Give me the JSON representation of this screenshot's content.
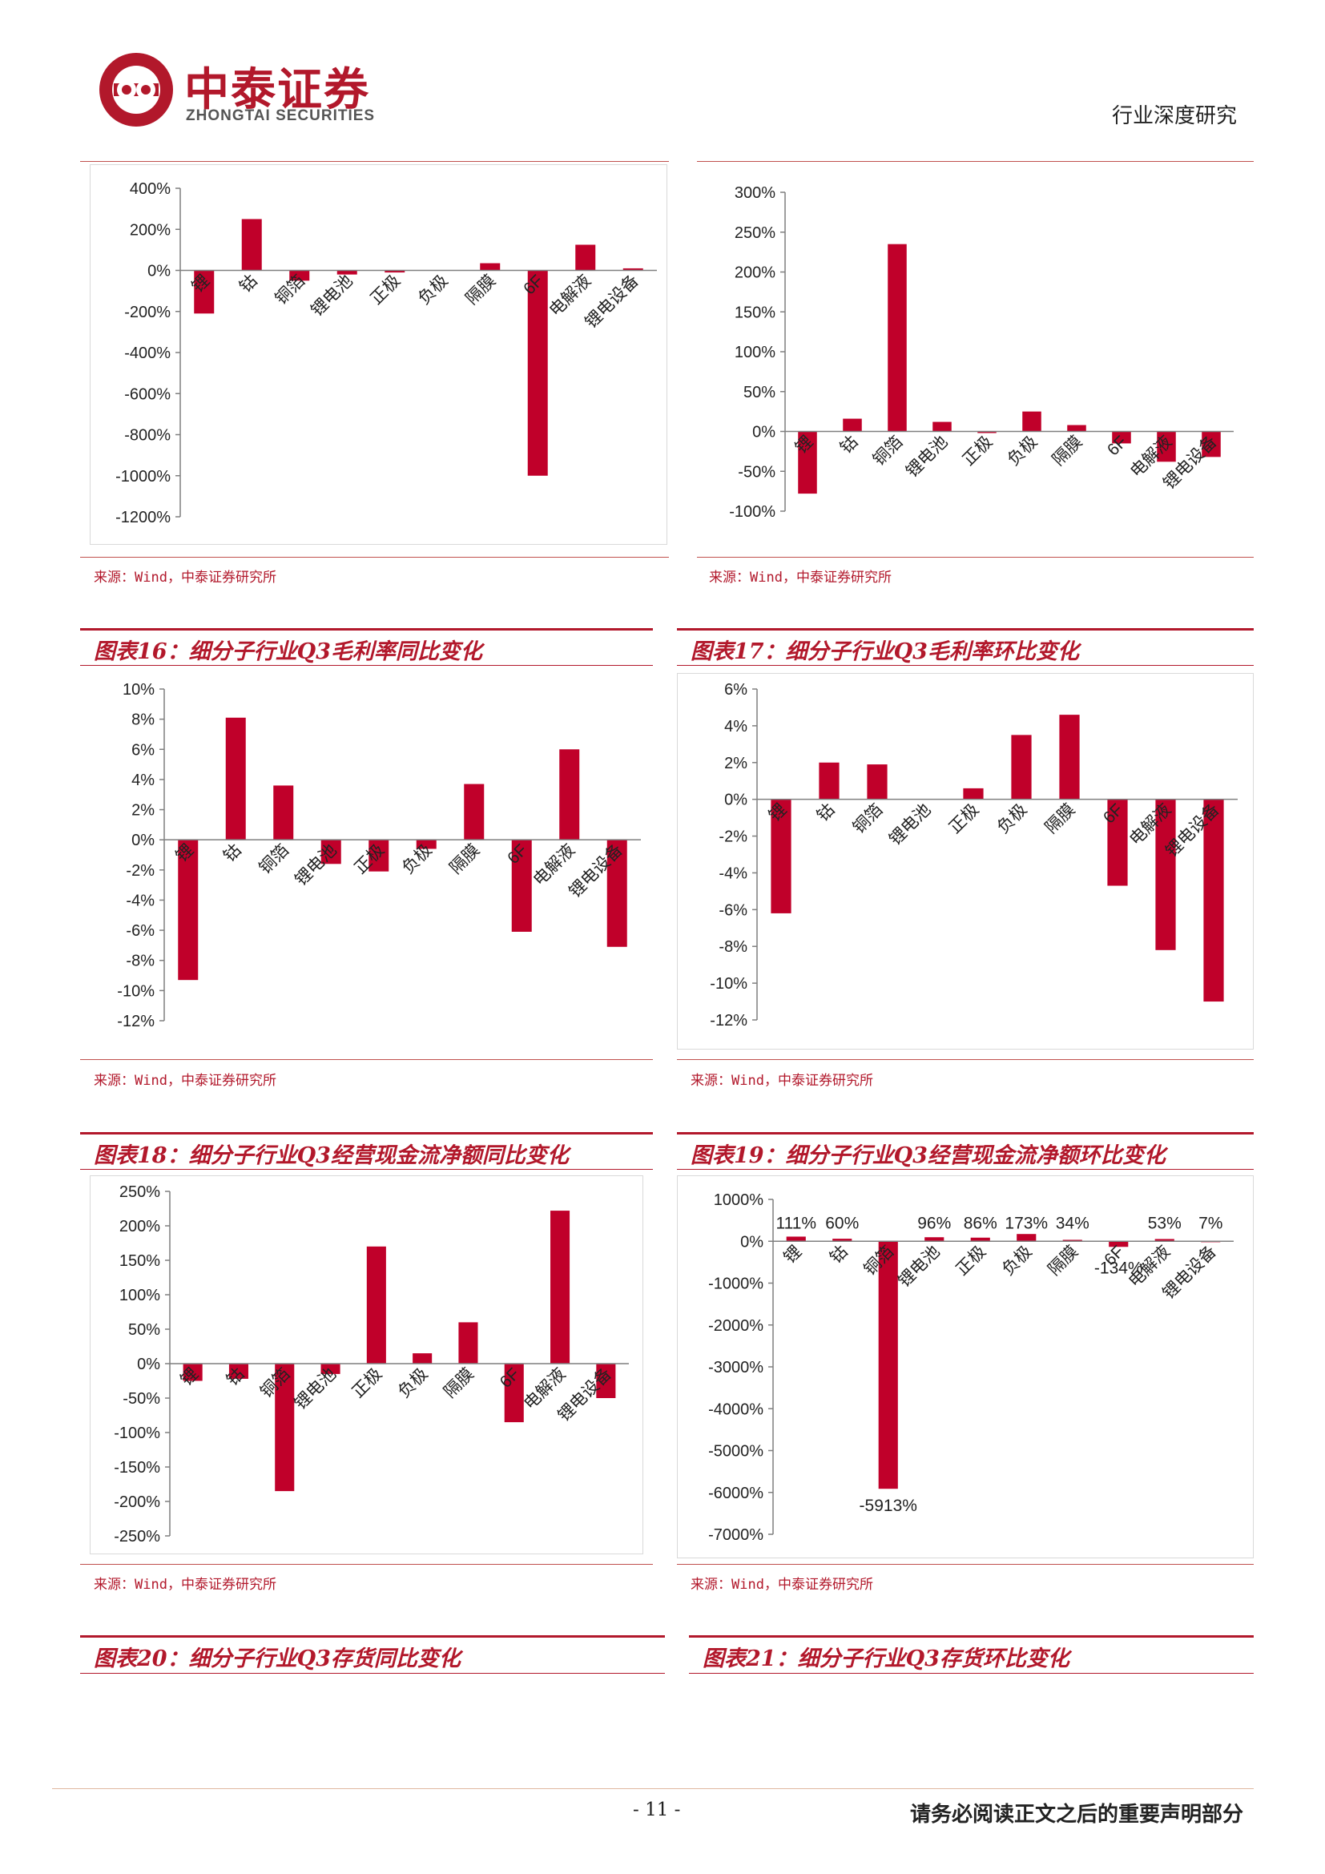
{
  "header": {
    "logo_cn": "中泰证券",
    "logo_en": "ZHONGTAI SECURITIES",
    "report_type": "行业深度研究"
  },
  "sources": {
    "s1": "来源：Wind，中泰证券研究所",
    "s2": "来源：Wind，中泰证券研究所",
    "s3": "来源：Wind，中泰证券研究所",
    "s4": "来源：Wind，中泰证券研究所",
    "s5": "来源：Wind，中泰证券研究所",
    "s6": "来源：Wind，中泰证券研究所"
  },
  "figures": {
    "f16": "图表16：细分子行业Q3毛利率同比变化",
    "f17": "图表17：细分子行业Q3毛利率环比变化",
    "f18": "图表18：细分子行业Q3经营现金流净额同比变化",
    "f19": "图表19：细分子行业Q3经营现金流净额环比变化",
    "f20": "图表20：细分子行业Q3存货同比变化",
    "f21": "图表21：细分子行业Q3存货环比变化"
  },
  "footer": {
    "page": "- 11 -",
    "notice": "请务必阅读正文之后的重要声明部分"
  },
  "colors": {
    "bar": "#c0002a",
    "accent": "#b2182b"
  },
  "chart_data": [
    {
      "id": "c1",
      "type": "bar",
      "categories": [
        "锂",
        "钴",
        "铜箔",
        "锂电池",
        "正极",
        "负极",
        "隔膜",
        "6F",
        "电解液",
        "锂电设备"
      ],
      "values": [
        -210,
        250,
        -50,
        -20,
        -10,
        0,
        35,
        -1000,
        125,
        10
      ],
      "ylim": [
        -1200,
        400
      ],
      "yticks": [
        400,
        200,
        0,
        -200,
        -400,
        -600,
        -800,
        -1000,
        -1200
      ],
      "tick_labels": [
        "400%",
        "200%",
        "0%",
        "-200%",
        "-400%",
        "-600%",
        "-800%",
        "-1000%",
        "-1200%"
      ]
    },
    {
      "id": "c2",
      "type": "bar",
      "categories": [
        "锂",
        "钴",
        "铜箔",
        "锂电池",
        "正极",
        "负极",
        "隔膜",
        "6F",
        "电解液",
        "锂电设备"
      ],
      "values": [
        -78,
        16,
        235,
        12,
        -2,
        25,
        8,
        -15,
        -38,
        -32
      ],
      "ylim": [
        -100,
        300
      ],
      "yticks": [
        300,
        250,
        200,
        150,
        100,
        50,
        0,
        -50,
        -100
      ],
      "tick_labels": [
        "300%",
        "250%",
        "200%",
        "150%",
        "100%",
        "50%",
        "0%",
        "-50%",
        "-100%"
      ]
    },
    {
      "id": "c3",
      "type": "bar",
      "categories": [
        "锂",
        "钴",
        "铜箔",
        "锂电池",
        "正极",
        "负极",
        "隔膜",
        "6F",
        "电解液",
        "锂电设备"
      ],
      "values": [
        -9.3,
        8.1,
        3.6,
        -1.6,
        -2.1,
        -0.6,
        3.7,
        -6.1,
        6.0,
        -7.1
      ],
      "ylim": [
        -12,
        10
      ],
      "yticks": [
        10,
        8,
        6,
        4,
        2,
        0,
        -2,
        -4,
        -6,
        -8,
        -10,
        -12
      ],
      "tick_labels": [
        "10%",
        "8%",
        "6%",
        "4%",
        "2%",
        "0%",
        "-2%",
        "-4%",
        "-6%",
        "-8%",
        "-10%",
        "-12%"
      ]
    },
    {
      "id": "c4",
      "type": "bar",
      "categories": [
        "锂",
        "钴",
        "铜箔",
        "锂电池",
        "正极",
        "负极",
        "隔膜",
        "6F",
        "电解液",
        "锂电设备"
      ],
      "values": [
        -6.2,
        2.0,
        1.9,
        0,
        0.6,
        3.5,
        4.6,
        -4.7,
        -8.2,
        -11.0
      ],
      "ylim": [
        -12,
        6
      ],
      "yticks": [
        6,
        4,
        2,
        0,
        -2,
        -4,
        -6,
        -8,
        -10,
        -12
      ],
      "tick_labels": [
        "6%",
        "4%",
        "2%",
        "0%",
        "-2%",
        "-4%",
        "-6%",
        "-8%",
        "-10%",
        "-12%"
      ]
    },
    {
      "id": "c5",
      "type": "bar",
      "categories": [
        "锂",
        "钴",
        "铜箔",
        "锂电池",
        "正极",
        "负极",
        "隔膜",
        "6F",
        "电解液",
        "锂电设备"
      ],
      "values": [
        -25,
        -22,
        -185,
        -15,
        170,
        15,
        60,
        -85,
        222,
        -50
      ],
      "ylim": [
        -250,
        250
      ],
      "yticks": [
        250,
        200,
        150,
        100,
        50,
        0,
        -50,
        -100,
        -150,
        -200,
        -250
      ],
      "tick_labels": [
        "250%",
        "200%",
        "150%",
        "100%",
        "50%",
        "0%",
        "-50%",
        "-100%",
        "-150%",
        "-200%",
        "-250%"
      ]
    },
    {
      "id": "c6",
      "type": "bar",
      "categories": [
        "锂",
        "钴",
        "铜箔",
        "锂电池",
        "正极",
        "负极",
        "隔膜",
        "6F",
        "电解液",
        "锂电设备"
      ],
      "values": [
        111,
        60,
        -5913,
        96,
        86,
        173,
        34,
        -134,
        53,
        7
      ],
      "data_labels": [
        "111%",
        "60%",
        "-5913%",
        "96%",
        "86%",
        "173%",
        "34%",
        "-134%",
        "53%",
        "7%"
      ],
      "ylim": [
        -7000,
        1000
      ],
      "yticks": [
        1000,
        0,
        -1000,
        -2000,
        -3000,
        -4000,
        -5000,
        -6000,
        -7000
      ],
      "tick_labels": [
        "1000%",
        "0%",
        "-1000%",
        "-2000%",
        "-3000%",
        "-4000%",
        "-5000%",
        "-6000%",
        "-7000%"
      ]
    }
  ]
}
